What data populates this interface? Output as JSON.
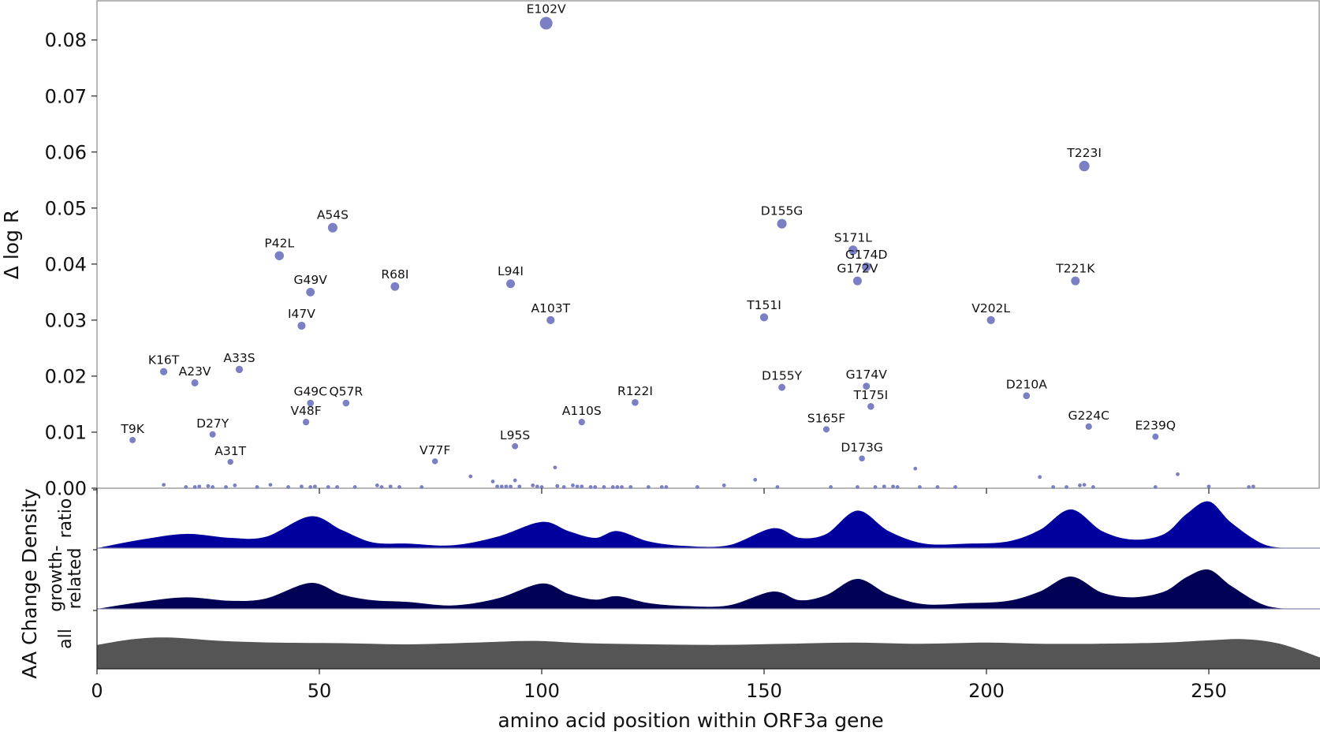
{
  "chart_data": {
    "type": "scatter",
    "xlabel": "amino acid position within ORF3a gene",
    "ylabel": "Δ log R",
    "density_label": "AA Change Density",
    "xlim": [
      0,
      275
    ],
    "ylim": [
      0,
      0.087
    ],
    "x_ticks": [
      "0",
      "50",
      "100",
      "150",
      "200",
      "250"
    ],
    "y_ticks": [
      "0.00",
      "0.01",
      "0.02",
      "0.03",
      "0.04",
      "0.05",
      "0.06",
      "0.07",
      "0.08"
    ],
    "point_color": "#7b7fc4",
    "labeled_points": [
      {
        "label": "E102V",
        "x": 101,
        "y": 0.083
      },
      {
        "label": "T223I",
        "x": 222,
        "y": 0.0575
      },
      {
        "label": "D155G",
        "x": 154,
        "y": 0.0472
      },
      {
        "label": "A54S",
        "x": 53,
        "y": 0.0465
      },
      {
        "label": "S171L",
        "x": 170,
        "y": 0.0425
      },
      {
        "label": "P42L",
        "x": 41,
        "y": 0.0415
      },
      {
        "label": "G174D",
        "x": 173,
        "y": 0.0395
      },
      {
        "label": "G172V",
        "x": 171,
        "y": 0.037
      },
      {
        "label": "T221K",
        "x": 220,
        "y": 0.037
      },
      {
        "label": "R68I",
        "x": 67,
        "y": 0.036
      },
      {
        "label": "L94I",
        "x": 93,
        "y": 0.0365
      },
      {
        "label": "G49V",
        "x": 48,
        "y": 0.035
      },
      {
        "label": "T151I",
        "x": 150,
        "y": 0.0305
      },
      {
        "label": "A103T",
        "x": 102,
        "y": 0.03
      },
      {
        "label": "V202L",
        "x": 201,
        "y": 0.03
      },
      {
        "label": "I47V",
        "x": 46,
        "y": 0.029
      },
      {
        "label": "A33S",
        "x": 32,
        "y": 0.0212
      },
      {
        "label": "K16T",
        "x": 15,
        "y": 0.0208
      },
      {
        "label": "A23V",
        "x": 22,
        "y": 0.0188
      },
      {
        "label": "G174V",
        "x": 173,
        "y": 0.0182
      },
      {
        "label": "D155Y",
        "x": 154,
        "y": 0.018
      },
      {
        "label": "D210A",
        "x": 209,
        "y": 0.0165
      },
      {
        "label": "R122I",
        "x": 121,
        "y": 0.0153
      },
      {
        "label": "G49C",
        "x": 48,
        "y": 0.0152
      },
      {
        "label": "Q57R",
        "x": 56,
        "y": 0.0152
      },
      {
        "label": "T175I",
        "x": 174,
        "y": 0.0146
      },
      {
        "label": "V48F",
        "x": 47,
        "y": 0.0118
      },
      {
        "label": "A110S",
        "x": 109,
        "y": 0.0118
      },
      {
        "label": "G224C",
        "x": 223,
        "y": 0.011
      },
      {
        "label": "S165F",
        "x": 164,
        "y": 0.0105
      },
      {
        "label": "D27Y",
        "x": 26,
        "y": 0.0096
      },
      {
        "label": "E239Q",
        "x": 238,
        "y": 0.0092
      },
      {
        "label": "T9K",
        "x": 8,
        "y": 0.0086
      },
      {
        "label": "L95S",
        "x": 94,
        "y": 0.0075
      },
      {
        "label": "D173G",
        "x": 172,
        "y": 0.0053
      },
      {
        "label": "V77F",
        "x": 76,
        "y": 0.0048
      },
      {
        "label": "A31T",
        "x": 30,
        "y": 0.0047
      }
    ],
    "small_points": [
      {
        "x": 15,
        "y": 0.0006
      },
      {
        "x": 20,
        "y": 0.0002
      },
      {
        "x": 22,
        "y": 0.0002
      },
      {
        "x": 23,
        "y": 0.0003
      },
      {
        "x": 25,
        "y": 0.0004
      },
      {
        "x": 26,
        "y": 0.0002
      },
      {
        "x": 29,
        "y": 0.0002
      },
      {
        "x": 31,
        "y": 0.0005
      },
      {
        "x": 36,
        "y": 0.0002
      },
      {
        "x": 39,
        "y": 0.0006
      },
      {
        "x": 43,
        "y": 0.0002
      },
      {
        "x": 46,
        "y": 0.0003
      },
      {
        "x": 48,
        "y": 0.0002
      },
      {
        "x": 49,
        "y": 0.0003
      },
      {
        "x": 52,
        "y": 0.0002
      },
      {
        "x": 54,
        "y": 0.0002
      },
      {
        "x": 58,
        "y": 0.0002
      },
      {
        "x": 63,
        "y": 0.0005
      },
      {
        "x": 64,
        "y": 0.0002
      },
      {
        "x": 66,
        "y": 0.0003
      },
      {
        "x": 68,
        "y": 0.0002
      },
      {
        "x": 73,
        "y": 0.0002
      },
      {
        "x": 84,
        "y": 0.0021
      },
      {
        "x": 89,
        "y": 0.0012
      },
      {
        "x": 90,
        "y": 0.0003
      },
      {
        "x": 91,
        "y": 0.0003
      },
      {
        "x": 92,
        "y": 0.0003
      },
      {
        "x": 93,
        "y": 0.0003
      },
      {
        "x": 94,
        "y": 0.0014
      },
      {
        "x": 95,
        "y": 0.0003
      },
      {
        "x": 98,
        "y": 0.0005
      },
      {
        "x": 99,
        "y": 0.0003
      },
      {
        "x": 100,
        "y": 0.0002
      },
      {
        "x": 103,
        "y": 0.0037
      },
      {
        "x": 103.5,
        "y": 0.0004
      },
      {
        "x": 105,
        "y": 0.0002
      },
      {
        "x": 107,
        "y": 0.0005
      },
      {
        "x": 108,
        "y": 0.0003
      },
      {
        "x": 109,
        "y": 0.0003
      },
      {
        "x": 111,
        "y": 0.0002
      },
      {
        "x": 112,
        "y": 0.0002
      },
      {
        "x": 114,
        "y": 0.0002
      },
      {
        "x": 116,
        "y": 0.0002
      },
      {
        "x": 117,
        "y": 0.0002
      },
      {
        "x": 118,
        "y": 0.0002
      },
      {
        "x": 120,
        "y": 0.0002
      },
      {
        "x": 124,
        "y": 0.0002
      },
      {
        "x": 127,
        "y": 0.0002
      },
      {
        "x": 128,
        "y": 0.0002
      },
      {
        "x": 135,
        "y": 0.0002
      },
      {
        "x": 141,
        "y": 0.0005
      },
      {
        "x": 148,
        "y": 0.0015
      },
      {
        "x": 153,
        "y": 0.0002
      },
      {
        "x": 165,
        "y": 0.0002
      },
      {
        "x": 171,
        "y": 0.0002
      },
      {
        "x": 175,
        "y": 0.0002
      },
      {
        "x": 177,
        "y": 0.0003
      },
      {
        "x": 179,
        "y": 0.0003
      },
      {
        "x": 180,
        "y": 0.0002
      },
      {
        "x": 184,
        "y": 0.0035
      },
      {
        "x": 185,
        "y": 0.0002
      },
      {
        "x": 189,
        "y": 0.0002
      },
      {
        "x": 193,
        "y": 0.0002
      },
      {
        "x": 212,
        "y": 0.002
      },
      {
        "x": 215,
        "y": 0.0002
      },
      {
        "x": 218,
        "y": 0.0002
      },
      {
        "x": 221,
        "y": 0.0005
      },
      {
        "x": 222,
        "y": 0.0006
      },
      {
        "x": 224,
        "y": 0.0002
      },
      {
        "x": 238,
        "y": 0.0002
      },
      {
        "x": 243,
        "y": 0.0025
      },
      {
        "x": 250,
        "y": 0.0003
      },
      {
        "x": 259,
        "y": 0.0002
      },
      {
        "x": 260,
        "y": 0.0003
      }
    ],
    "density_panels": [
      {
        "label": [
          "ratio"
        ],
        "color": "#00009e",
        "x": [
          0,
          10,
          20,
          30,
          38,
          48,
          55,
          62,
          70,
          80,
          90,
          100,
          106,
          112,
          117,
          124,
          132,
          142,
          152,
          158,
          164,
          171,
          178,
          186,
          196,
          205,
          212,
          219,
          226,
          233,
          240,
          245,
          250,
          255,
          262,
          268,
          275
        ],
        "values": [
          0.0,
          0.15,
          0.25,
          0.18,
          0.2,
          0.56,
          0.32,
          0.1,
          0.08,
          0.05,
          0.2,
          0.46,
          0.3,
          0.18,
          0.3,
          0.12,
          0.04,
          0.05,
          0.35,
          0.18,
          0.25,
          0.66,
          0.3,
          0.08,
          0.08,
          0.12,
          0.32,
          0.68,
          0.3,
          0.15,
          0.25,
          0.6,
          0.82,
          0.45,
          0.08,
          0.0,
          0.0
        ]
      },
      {
        "label": [
          "growth-",
          "related"
        ],
        "color": "#000055",
        "x": [
          0,
          10,
          20,
          30,
          38,
          48,
          55,
          62,
          70,
          80,
          90,
          100,
          106,
          112,
          117,
          124,
          132,
          142,
          152,
          158,
          164,
          171,
          178,
          186,
          196,
          205,
          212,
          219,
          226,
          233,
          240,
          245,
          250,
          255,
          262,
          268,
          275
        ],
        "values": [
          0.0,
          0.12,
          0.2,
          0.14,
          0.18,
          0.45,
          0.25,
          0.15,
          0.12,
          0.06,
          0.18,
          0.44,
          0.26,
          0.16,
          0.22,
          0.1,
          0.05,
          0.06,
          0.3,
          0.15,
          0.24,
          0.52,
          0.25,
          0.08,
          0.1,
          0.14,
          0.3,
          0.56,
          0.28,
          0.2,
          0.3,
          0.55,
          0.68,
          0.4,
          0.08,
          0.0,
          0.0
        ]
      },
      {
        "label": [
          "all"
        ],
        "color": "#555555",
        "x": [
          0,
          8,
          16,
          28,
          40,
          55,
          70,
          85,
          98,
          110,
          125,
          140,
          155,
          170,
          185,
          200,
          212,
          225,
          240,
          250,
          258,
          266,
          275
        ],
        "values": [
          0.42,
          0.52,
          0.55,
          0.49,
          0.46,
          0.45,
          0.43,
          0.46,
          0.49,
          0.45,
          0.43,
          0.42,
          0.44,
          0.46,
          0.44,
          0.46,
          0.44,
          0.44,
          0.46,
          0.5,
          0.52,
          0.44,
          0.2
        ]
      }
    ]
  }
}
